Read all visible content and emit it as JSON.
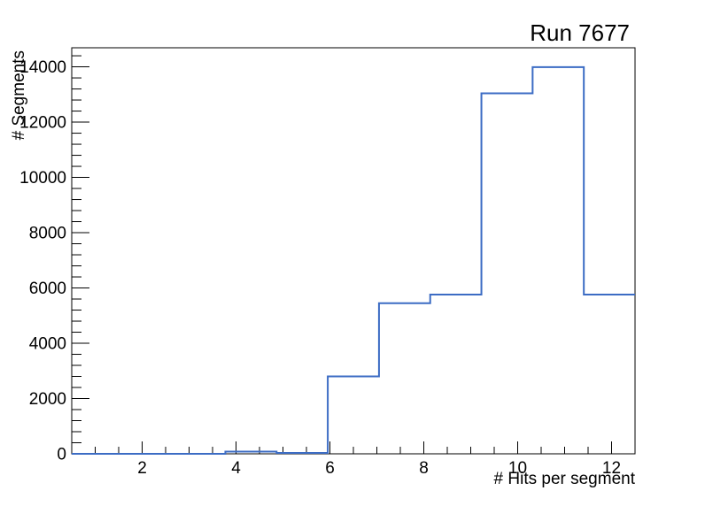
{
  "page": {
    "background": "#ffffff"
  },
  "chart_data": {
    "type": "histogram-step",
    "title": "Run 7677",
    "xlabel": "# Hits per segment",
    "ylabel": "# Segments",
    "x_range": [
      0.5,
      12.5
    ],
    "y_range": [
      0,
      14690
    ],
    "bin_edges": [
      0.5,
      1.5909,
      2.6818,
      3.7727,
      4.8636,
      5.9545,
      7.0455,
      8.1364,
      9.2273,
      10.3182,
      11.4091,
      12.5
    ],
    "counts": [
      0,
      0,
      0,
      80,
      30,
      2800,
      5450,
      5760,
      13040,
      13990,
      5760
    ],
    "x_ticks_major": [
      2,
      4,
      6,
      8,
      10,
      12
    ],
    "x_tick_labels": [
      "2",
      "4",
      "6",
      "8",
      "10",
      "12"
    ],
    "x_minor_step": 0.5,
    "y_ticks_major": [
      0,
      2000,
      4000,
      6000,
      8000,
      10000,
      12000,
      14000
    ],
    "y_tick_labels": [
      "0",
      "2000",
      "4000",
      "6000",
      "8000",
      "10000",
      "12000",
      "14000"
    ],
    "y_minor_step": 400,
    "line_color": "#3c6cc4",
    "axis_color": "#000000",
    "grid": false,
    "legend": null
  }
}
